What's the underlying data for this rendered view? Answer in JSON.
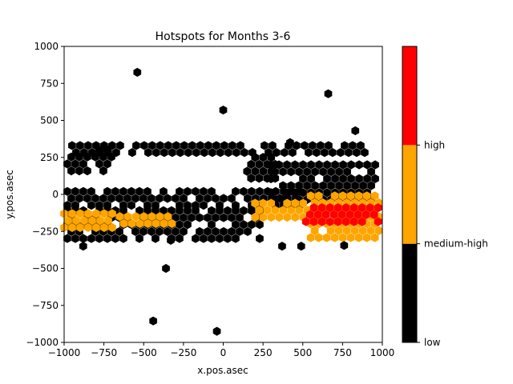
{
  "chart_data": {
    "type": "hexbin",
    "title": "Hotspots for Months 3-6",
    "xlabel": "x.pos.asec",
    "ylabel": "y.pos.asec",
    "xlim": [
      -1000,
      1000
    ],
    "ylim": [
      -1000,
      1000
    ],
    "xticks": [
      "−1000",
      "−750",
      "−500",
      "−250",
      "0",
      "250",
      "500",
      "750",
      "1000"
    ],
    "yticks": [
      "−1000",
      "−750",
      "−500",
      "−250",
      "0",
      "250",
      "500",
      "750",
      "1000"
    ],
    "grid": false,
    "colorbar": {
      "levels": [
        "low",
        "medium-high",
        "high"
      ],
      "colors": [
        "#000000",
        "#ffa500",
        "#ff0000"
      ]
    },
    "regions": [
      {
        "level": "low",
        "x": [
          -950,
          900
        ],
        "y": [
          270,
          330
        ]
      },
      {
        "level": "low",
        "x": [
          -980,
          -700
        ],
        "y": [
          150,
          300
        ]
      },
      {
        "level": "low",
        "x": [
          -980,
          500
        ],
        "y": [
          -100,
          20
        ]
      },
      {
        "level": "low",
        "x": [
          -980,
          250
        ],
        "y": [
          -310,
          -110
        ]
      },
      {
        "level": "low",
        "x": [
          300,
          980
        ],
        "y": [
          -40,
          200
        ]
      },
      {
        "level": "low",
        "x": [
          150,
          350
        ],
        "y": [
          100,
          250
        ]
      },
      {
        "level": "medium-high",
        "x": [
          -1000,
          -650
        ],
        "y": [
          -230,
          -130
        ]
      },
      {
        "level": "medium-high",
        "x": [
          -650,
          -300
        ],
        "y": [
          -220,
          -150
        ]
      },
      {
        "level": "medium-high",
        "x": [
          200,
          550
        ],
        "y": [
          -200,
          -60
        ]
      },
      {
        "level": "medium-high",
        "x": [
          550,
          990
        ],
        "y": [
          -300,
          -10
        ]
      },
      {
        "level": "high",
        "x": [
          520,
          980
        ],
        "y": [
          -220,
          -90
        ]
      }
    ],
    "outliers": [
      {
        "x": -540,
        "y": 825
      },
      {
        "x": 0,
        "y": 570
      },
      {
        "x": 660,
        "y": 680
      },
      {
        "x": -360,
        "y": -500
      },
      {
        "x": -440,
        "y": -855
      },
      {
        "x": -40,
        "y": -925
      },
      {
        "x": 420,
        "y": 350
      },
      {
        "x": 830,
        "y": 430
      },
      {
        "x": 370,
        "y": -350
      },
      {
        "x": 490,
        "y": -350
      },
      {
        "x": 760,
        "y": -345
      },
      {
        "x": -330,
        "y": -310
      },
      {
        "x": -880,
        "y": -350
      }
    ]
  }
}
